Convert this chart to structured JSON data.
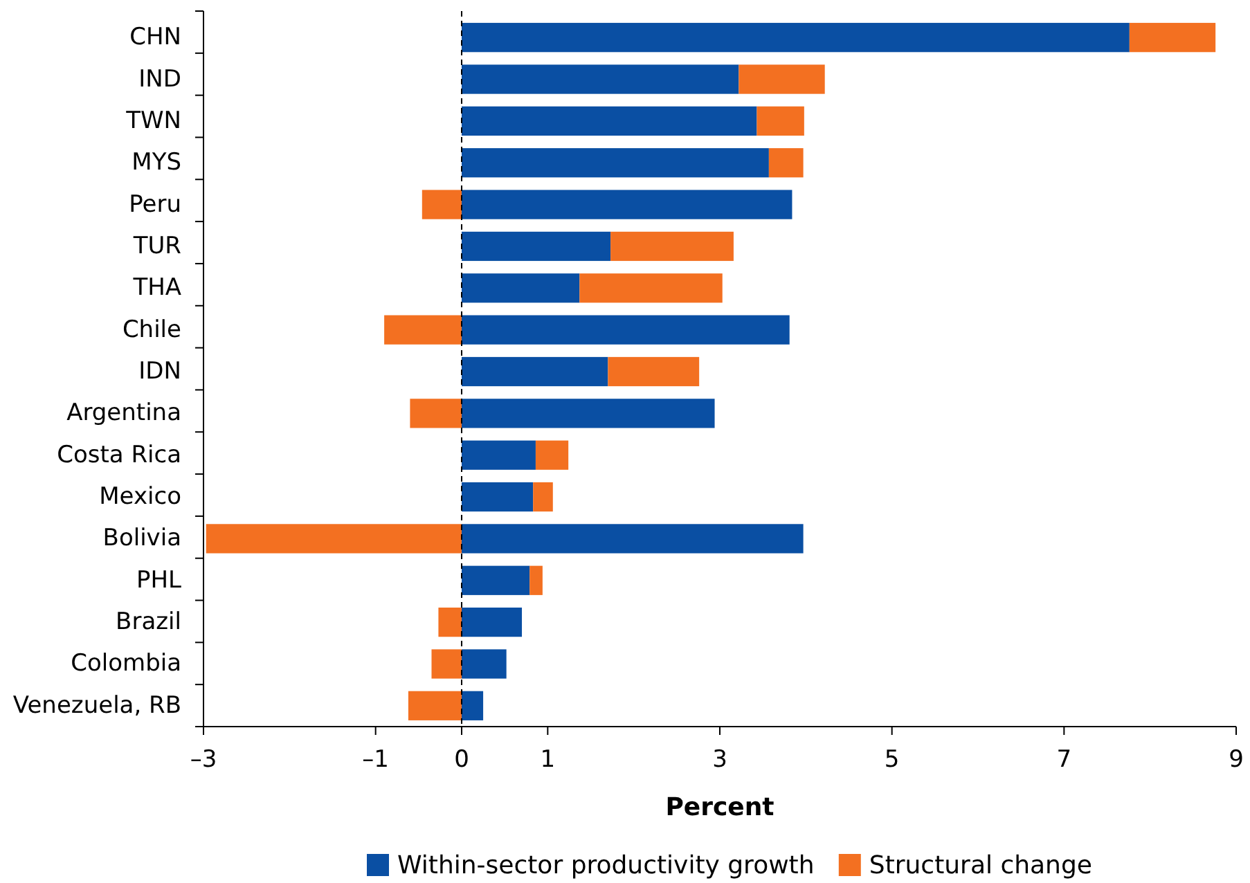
{
  "chart_data": {
    "type": "bar",
    "orientation": "horizontal",
    "stacked": true,
    "xlabel": "Percent",
    "categories": [
      "CHN",
      "IND",
      "TWN",
      "MYS",
      "Peru",
      "TUR",
      "THA",
      "Chile",
      "IDN",
      "Argentina",
      "Costa Rica",
      "Mexico",
      "Bolivia",
      "PHL",
      "Brazil",
      "Colombia",
      "Venezuela, RB"
    ],
    "series": [
      {
        "name": "Within-sector productivity growth",
        "color": "#0a4fa3",
        "values": [
          7.76,
          3.22,
          3.43,
          3.57,
          3.84,
          1.73,
          1.37,
          3.81,
          1.7,
          2.94,
          0.86,
          0.83,
          3.97,
          0.79,
          0.7,
          0.52,
          0.25
        ]
      },
      {
        "name": "Structural change",
        "color": "#f37021",
        "values": [
          1.0,
          1.0,
          0.55,
          0.4,
          -0.46,
          1.43,
          1.66,
          -0.9,
          1.06,
          -0.6,
          0.38,
          0.23,
          -2.97,
          0.15,
          -0.27,
          -0.35,
          -0.62
        ]
      }
    ],
    "xlim": [
      -3,
      9
    ],
    "xticks": [
      {
        "value": -3,
        "label": "–3"
      },
      {
        "value": -1,
        "label": "–1"
      },
      0,
      1,
      3,
      5,
      7,
      9
    ],
    "ref_lines": [
      {
        "axis": "x",
        "value": 0,
        "line_style": "dashed",
        "color": "#000000"
      }
    ],
    "legend": "bottom",
    "grid": false
  }
}
